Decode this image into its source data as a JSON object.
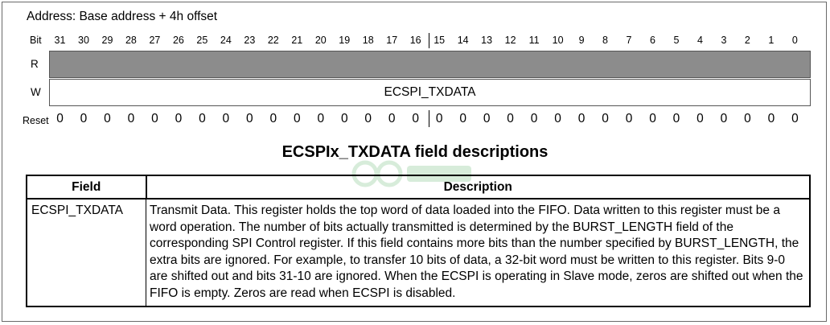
{
  "address": "Address: Base address + 4h offset",
  "bit_header": {
    "label": "Bit",
    "numbers": [
      "31",
      "30",
      "29",
      "28",
      "27",
      "26",
      "25",
      "24",
      "23",
      "22",
      "21",
      "20",
      "19",
      "18",
      "17",
      "16",
      "15",
      "14",
      "13",
      "12",
      "11",
      "10",
      "9",
      "8",
      "7",
      "6",
      "5",
      "4",
      "3",
      "2",
      "1",
      "0"
    ]
  },
  "rows": {
    "r_label": "R",
    "w_label": "W"
  },
  "w_field": "ECSPI_TXDATA",
  "reset": {
    "label": "Reset",
    "values": [
      "0",
      "0",
      "0",
      "0",
      "0",
      "0",
      "0",
      "0",
      "0",
      "0",
      "0",
      "0",
      "0",
      "0",
      "0",
      "0",
      "0",
      "0",
      "0",
      "0",
      "0",
      "0",
      "0",
      "0",
      "0",
      "0",
      "0",
      "0",
      "0",
      "0",
      "0",
      "0"
    ]
  },
  "table": {
    "title": "ECSPIx_TXDATA field descriptions",
    "headers": {
      "field": "Field",
      "description": "Description"
    },
    "rows": [
      {
        "field": "ECSPI_TXDATA",
        "description": "Transmit Data. This register holds the top word of data loaded into the FIFO. Data written to this register must be a word operation. The number of bits actually transmitted is determined by the BURST_LENGTH field of the corresponding SPI Control register. If this field contains more bits than the number specified by BURST_LENGTH, the extra bits are ignored. For example, to transfer 10 bits of data, a 32-bit word must be written to this register. Bits 9-0 are shifted out and bits 31-10 are ignored. When the ECSPI is operating in Slave mode, zeros are shifted out when the FIFO is empty. Zeros are read when ECSPI is disabled."
      }
    ]
  },
  "colors": {
    "read_only_fill": "#8c8c8c",
    "border": "#000000"
  }
}
